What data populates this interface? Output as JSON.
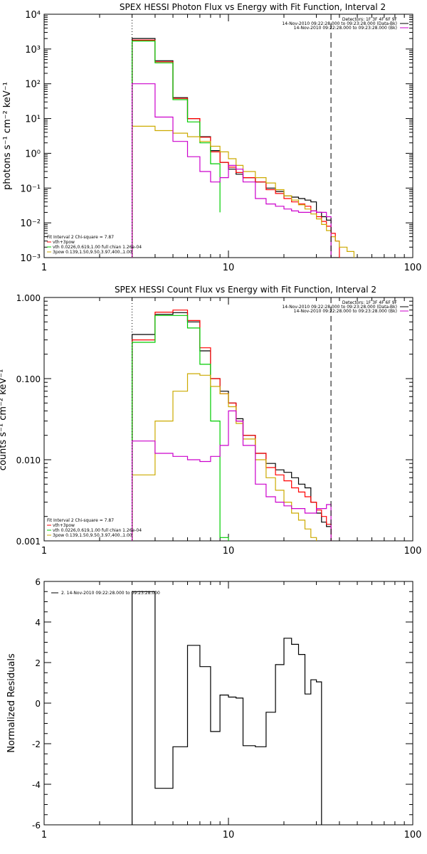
{
  "chart_data": [
    {
      "type": "line",
      "title": "SPEX HESSI Photon Flux vs Energy with Fit Function, Interval 2",
      "ylabel": "photons s⁻¹ cm⁻² keV⁻¹",
      "xlabel": "",
      "xscale": "log",
      "yscale": "log",
      "xlim": [
        1,
        100
      ],
      "ylim": [
        0.001,
        10000
      ],
      "x_ticks": [
        "1",
        "10",
        "100"
      ],
      "y_ticks": [
        "10⁻³",
        "10⁻²",
        "10⁻¹",
        "10⁰",
        "10¹",
        "10²",
        "10³",
        "10⁴"
      ],
      "vlines": [
        {
          "x": 3,
          "style": "dotted"
        },
        {
          "x": 36,
          "style": "dashed"
        }
      ],
      "legend_top": [
        {
          "text": "Detectors: 1F 3F 4F 6F 9F",
          "color": "#000000"
        },
        {
          "text": "14-Nov-2010 09:22:28.000 to 09:23:28.000 (Data-Bk)",
          "color": "#000000"
        },
        {
          "text": "14-Nov-2010 09:22:28.000 to 09:23:28.000 (Bk)",
          "color": "#cc00cc"
        }
      ],
      "legend_bottom": [
        {
          "text": "Fit Interval 2   Chi-square = 7.87",
          "color": "#000000"
        },
        {
          "text": "vth+3pow",
          "color": "#ff0000"
        },
        {
          "text": "vth 0.0226,0.619,1.00  full chian 1.26e-04",
          "color": "#00cc00"
        },
        {
          "text": "3pow 0.139,1.50,9.50,3.97,400.,1.00",
          "color": "#ccaa00"
        }
      ],
      "series": [
        {
          "color": "#000000",
          "edges": [
            3,
            4,
            5,
            6,
            7,
            8,
            9,
            10,
            11,
            12,
            14,
            16,
            18,
            20,
            22,
            24,
            26,
            28,
            30,
            32,
            34,
            36,
            38,
            40
          ],
          "values": [
            2000,
            460,
            40,
            10,
            3,
            1.2,
            0.55,
            0.35,
            0.25,
            0.2,
            0.15,
            0.1,
            0.08,
            0.06,
            0.055,
            0.05,
            0.045,
            0.04,
            0.02,
            0.015,
            0.012,
            0.001,
            0.001
          ]
        },
        {
          "color": "#ff0000",
          "edges": [
            3,
            4,
            5,
            6,
            7,
            8,
            9,
            10,
            11,
            12,
            14,
            16,
            18,
            20,
            22,
            24,
            26,
            28,
            30,
            32,
            34,
            36,
            38,
            40
          ],
          "values": [
            1800,
            430,
            38,
            10,
            2.9,
            1.1,
            0.55,
            0.4,
            0.28,
            0.2,
            0.15,
            0.09,
            0.07,
            0.05,
            0.04,
            0.035,
            0.03,
            0.022,
            0.015,
            0.011,
            0.008,
            0.005,
            0.003
          ]
        },
        {
          "color": "#00cc00",
          "edges": [
            3,
            4,
            5,
            6,
            7,
            8,
            9
          ],
          "values": [
            1700,
            400,
            35,
            8,
            2,
            0.5,
            0.02
          ]
        },
        {
          "color": "#ccaa00",
          "edges": [
            3,
            4,
            5,
            6,
            7,
            8,
            9,
            10,
            11,
            12,
            14,
            16,
            18,
            20,
            22,
            24,
            26,
            28,
            30,
            32,
            34,
            36,
            38,
            40,
            44,
            48
          ],
          "values": [
            6,
            4.5,
            3.8,
            3,
            2.2,
            1.6,
            1.1,
            0.7,
            0.45,
            0.3,
            0.2,
            0.14,
            0.09,
            0.06,
            0.045,
            0.033,
            0.025,
            0.018,
            0.013,
            0.009,
            0.006,
            0.004,
            0.003,
            0.002,
            0.0015
          ]
        },
        {
          "color": "#cc00cc",
          "edges": [
            3,
            4,
            5,
            6,
            7,
            8,
            9,
            10,
            11,
            12,
            14,
            16,
            18,
            20,
            22,
            24,
            26,
            28,
            30,
            32,
            34,
            36
          ],
          "values": [
            100,
            11,
            2.2,
            0.8,
            0.3,
            0.15,
            0.2,
            0.45,
            0.35,
            0.15,
            0.05,
            0.035,
            0.03,
            0.025,
            0.022,
            0.02,
            0.02,
            0.022,
            0.02,
            0.02,
            0.015
          ]
        }
      ]
    },
    {
      "type": "line",
      "title": "SPEX HESSI Count Flux vs Energy with Fit Function, Interval 2",
      "ylabel": "counts s⁻¹ cm⁻² keV⁻¹",
      "xlabel": "",
      "xscale": "log",
      "yscale": "log",
      "xlim": [
        1,
        100
      ],
      "ylim": [
        0.001,
        1.0
      ],
      "x_ticks": [
        "1",
        "10",
        "100"
      ],
      "y_ticks": [
        "0.001",
        "0.010",
        "0.100",
        "1.000"
      ],
      "vlines": [
        {
          "x": 3,
          "style": "dotted"
        },
        {
          "x": 36,
          "style": "dashed"
        }
      ],
      "legend_top": [
        {
          "text": "Detectors: 1F 3F 4F 6F 9F",
          "color": "#000000"
        },
        {
          "text": "14-Nov-2010 09:22:28.000 to 09:23:28.000 (Data-Bk)",
          "color": "#000000"
        },
        {
          "text": "14-Nov-2010 09:22:28.000 to 09:23:28.000 (Bk)",
          "color": "#cc00cc"
        }
      ],
      "legend_bottom": [
        {
          "text": "Fit Interval 2   Chi-square = 7.87",
          "color": "#000000"
        },
        {
          "text": "vth+3pow",
          "color": "#ff0000"
        },
        {
          "text": "vth 0.0226,0.619,1.00  full chian 1.26e-04",
          "color": "#00cc00"
        },
        {
          "text": "3pow 0.139,1.50,9.50,3.97,400.,1.00",
          "color": "#ccaa00"
        }
      ],
      "series": [
        {
          "color": "#000000",
          "edges": [
            3,
            4,
            5,
            6,
            7,
            8,
            9,
            10,
            11,
            12,
            14,
            16,
            18,
            20,
            22,
            24,
            26,
            28,
            30,
            32,
            34,
            36
          ],
          "values": [
            0.35,
            0.62,
            0.65,
            0.5,
            0.22,
            0.1,
            0.07,
            0.05,
            0.032,
            0.02,
            0.012,
            0.009,
            0.0075,
            0.007,
            0.006,
            0.005,
            0.0045,
            0.003,
            0.0022,
            0.0017,
            0.0015
          ]
        },
        {
          "color": "#ff0000",
          "edges": [
            3,
            4,
            5,
            6,
            7,
            8,
            9,
            10,
            11,
            12,
            14,
            16,
            18,
            20,
            22,
            24,
            26,
            28,
            30,
            32,
            34,
            36
          ],
          "values": [
            0.3,
            0.66,
            0.7,
            0.52,
            0.24,
            0.1,
            0.065,
            0.05,
            0.03,
            0.02,
            0.012,
            0.008,
            0.0065,
            0.0055,
            0.0045,
            0.004,
            0.0035,
            0.003,
            0.0024,
            0.002,
            0.0016
          ]
        },
        {
          "color": "#00cc00",
          "edges": [
            3,
            4,
            5,
            6,
            7,
            8,
            9,
            10
          ],
          "values": [
            0.28,
            0.6,
            0.6,
            0.42,
            0.15,
            0.03,
            0.0011
          ]
        },
        {
          "color": "#ccaa00",
          "edges": [
            3,
            4,
            5,
            6,
            7,
            8,
            9,
            10,
            11,
            12,
            14,
            16,
            18,
            20,
            22,
            24,
            26,
            28,
            30
          ],
          "values": [
            0.0065,
            0.03,
            0.07,
            0.115,
            0.11,
            0.08,
            0.065,
            0.045,
            0.028,
            0.018,
            0.01,
            0.006,
            0.0042,
            0.003,
            0.0022,
            0.0018,
            0.0014,
            0.0011
          ]
        },
        {
          "color": "#cc00cc",
          "edges": [
            3,
            4,
            5,
            6,
            7,
            8,
            9,
            10,
            11,
            12,
            14,
            16,
            18,
            20,
            22,
            24,
            26,
            28,
            30,
            32,
            34,
            36
          ],
          "values": [
            0.017,
            0.012,
            0.011,
            0.01,
            0.0095,
            0.011,
            0.015,
            0.04,
            0.03,
            0.015,
            0.005,
            0.0035,
            0.003,
            0.0027,
            0.0025,
            0.0025,
            0.0022,
            0.0022,
            0.0025,
            0.0025,
            0.0028
          ]
        }
      ]
    },
    {
      "type": "line",
      "title": "",
      "ylabel": "Normalized Residuals",
      "xlabel": "",
      "xscale": "log",
      "yscale": "linear",
      "xlim": [
        1,
        100
      ],
      "ylim": [
        -6,
        6
      ],
      "x_ticks": [
        "1",
        "10",
        "100"
      ],
      "y_ticks": [
        "-6",
        "-4",
        "-2",
        "0",
        "2",
        "4",
        "6"
      ],
      "legend_top": [
        {
          "text": "2. 14-Nov-2010 09:22:28.000 to 09:23:28.000",
          "color": "#000000"
        }
      ],
      "series": [
        {
          "color": "#000000",
          "edges": [
            3,
            4,
            5,
            6,
            7,
            8,
            9,
            10,
            11,
            12,
            14,
            16,
            18,
            20,
            22,
            24,
            26,
            28,
            30,
            32,
            34,
            36
          ],
          "values": [
            5.5,
            -4.2,
            -2.15,
            2.85,
            1.8,
            -1.4,
            0.4,
            0.3,
            0.25,
            -2.1,
            -2.15,
            -0.45,
            1.9,
            3.2,
            2.9,
            2.4,
            0.45,
            1.15,
            1.05,
            null,
            null
          ]
        }
      ]
    }
  ]
}
